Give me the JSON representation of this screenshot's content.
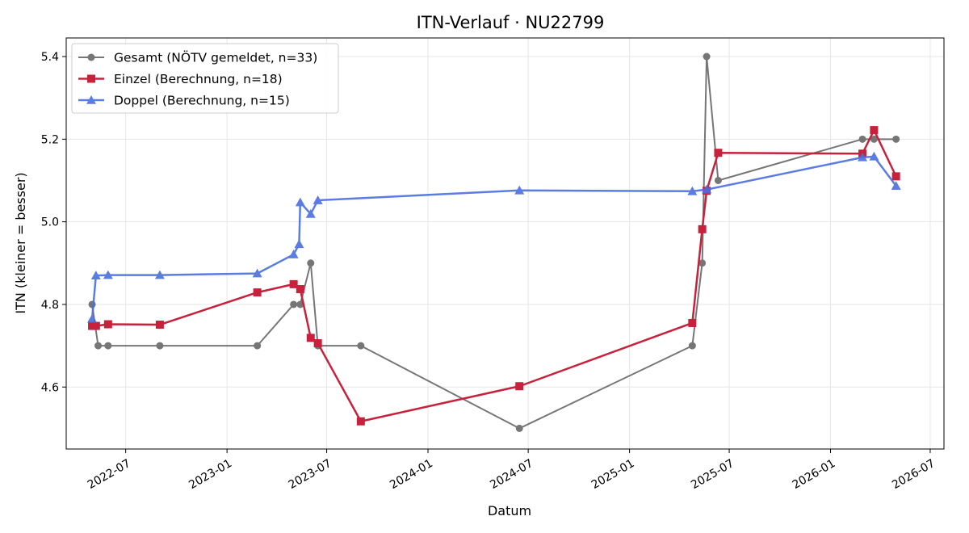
{
  "chart_data": {
    "type": "line",
    "title": "ITN-Verlauf · NU22799",
    "xlabel": "Datum",
    "ylabel": "ITN  (kleiner = besser)",
    "x_axis": "date",
    "xlim": [
      "2022-03-15",
      "2026-07-26"
    ],
    "ylim": [
      4.45,
      5.445
    ],
    "x_ticks": [
      "2022-07-01",
      "2023-01-01",
      "2023-07-01",
      "2024-01-01",
      "2024-07-01",
      "2025-01-01",
      "2025-07-01",
      "2026-01-01",
      "2026-07-01"
    ],
    "x_tick_labels": [
      "2022-07",
      "2023-01",
      "2023-07",
      "2024-01",
      "2024-07",
      "2025-01",
      "2025-07",
      "2026-01",
      "2026-07"
    ],
    "y_ticks": [
      4.6,
      4.8,
      5.0,
      5.2,
      5.4
    ],
    "y_tick_labels": [
      "4.6",
      "4.8",
      "5.0",
      "5.2",
      "5.4"
    ],
    "grid": true,
    "legend_position": "top-left",
    "series": [
      {
        "name": "Gesamt (NÖTV gemeldet, n=33)",
        "color": "#555555",
        "marker": "circle",
        "points": [
          [
            "2022-05-01",
            4.8
          ],
          [
            "2022-05-12",
            4.7
          ],
          [
            "2022-05-30",
            4.7
          ],
          [
            "2022-09-01",
            4.7
          ],
          [
            "2023-02-25",
            4.7
          ],
          [
            "2023-05-02",
            4.8
          ],
          [
            "2023-05-14",
            4.8
          ],
          [
            "2023-06-02",
            4.9
          ],
          [
            "2023-06-15",
            4.7
          ],
          [
            "2023-09-01",
            4.7
          ],
          [
            "2024-06-15",
            4.5
          ],
          [
            "2025-04-25",
            4.7
          ],
          [
            "2025-05-13",
            4.9
          ],
          [
            "2025-05-21",
            5.4
          ],
          [
            "2025-06-11",
            5.1
          ],
          [
            "2026-02-28",
            5.2
          ],
          [
            "2026-03-21",
            5.2
          ],
          [
            "2026-04-30",
            5.2
          ]
        ]
      },
      {
        "name": "Einzel (Berechnung, n=18)",
        "color": "#c8213c",
        "marker": "square",
        "points": [
          [
            "2022-05-01",
            4.748
          ],
          [
            "2022-05-08",
            4.748
          ],
          [
            "2022-05-30",
            4.752
          ],
          [
            "2022-09-01",
            4.751
          ],
          [
            "2023-02-25",
            4.829
          ],
          [
            "2023-05-02",
            4.849
          ],
          [
            "2023-05-14",
            4.837
          ],
          [
            "2023-06-02",
            4.719
          ],
          [
            "2023-06-15",
            4.706
          ],
          [
            "2023-09-01",
            4.517
          ],
          [
            "2024-06-15",
            4.602
          ],
          [
            "2025-04-25",
            4.755
          ],
          [
            "2025-05-13",
            4.982
          ],
          [
            "2025-05-21",
            5.075
          ],
          [
            "2025-06-11",
            5.167
          ],
          [
            "2026-02-28",
            5.165
          ],
          [
            "2026-03-21",
            5.222
          ],
          [
            "2026-04-30",
            5.11
          ]
        ]
      },
      {
        "name": "Doppel (Berechnung, n=15)",
        "color": "#4a6ee0",
        "marker": "triangle",
        "points": [
          [
            "2022-05-01",
            4.765
          ],
          [
            "2022-05-08",
            4.87
          ],
          [
            "2022-05-30",
            4.871
          ],
          [
            "2022-09-01",
            4.871
          ],
          [
            "2023-02-25",
            4.875
          ],
          [
            "2023-05-02",
            4.921
          ],
          [
            "2023-05-12",
            4.946
          ],
          [
            "2023-05-14",
            5.047
          ],
          [
            "2023-06-02",
            5.019
          ],
          [
            "2023-06-15",
            5.052
          ],
          [
            "2024-06-15",
            5.076
          ],
          [
            "2025-04-25",
            5.074
          ],
          [
            "2025-05-21",
            5.078
          ],
          [
            "2026-02-28",
            5.156
          ],
          [
            "2026-03-21",
            5.158
          ],
          [
            "2026-04-30",
            5.087
          ]
        ]
      }
    ]
  }
}
